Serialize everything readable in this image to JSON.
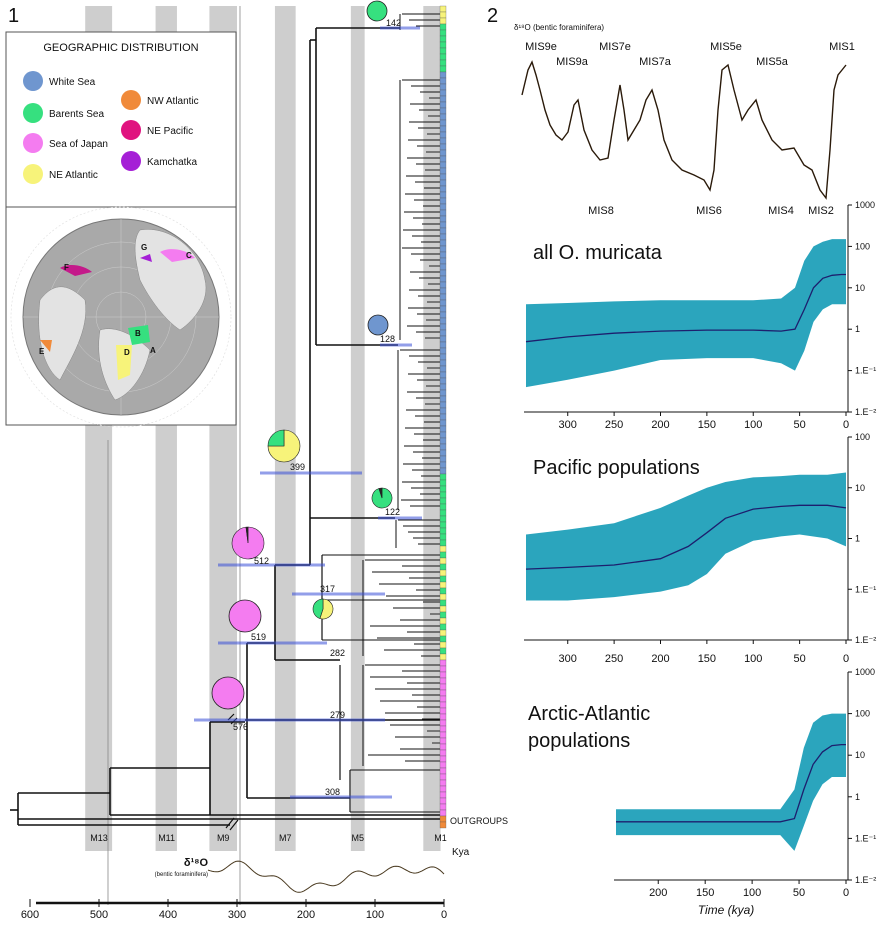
{
  "panel1": {
    "label": "1",
    "legend": {
      "title": "GEOGRAPHIC DISTRIBUTION",
      "items": [
        {
          "label": "White Sea",
          "color": "#6f96cf"
        },
        {
          "label": "Barents Sea",
          "color": "#36e07f"
        },
        {
          "label": "Sea of Japan",
          "color": "#f47cf0"
        },
        {
          "label": "NE Atlantic",
          "color": "#f7f37a"
        },
        {
          "label": "NW Atlantic",
          "color": "#f08a3a"
        },
        {
          "label": "NE Pacific",
          "color": "#e0137f"
        },
        {
          "label": "Kamchatka",
          "color": "#a51fd6"
        }
      ]
    },
    "map_letters": [
      "A",
      "B",
      "C",
      "D",
      "E",
      "F",
      "G"
    ],
    "tree": {
      "node_ages": [
        "142",
        "128",
        "399",
        "122",
        "512",
        "317",
        "519",
        "282",
        "576",
        "279",
        "308"
      ],
      "outgroups_label": "OUTGROUPS",
      "mis_labels": [
        "M13",
        "M11",
        "M9",
        "M7",
        "M5",
        "M1"
      ],
      "kya_label": "Kya",
      "axis_ticks": [
        "600",
        "500",
        "400",
        "300",
        "200",
        "100",
        "0"
      ],
      "d18o_title": "δ¹⁸O",
      "d18o_subtitle": "(bentic foraminifera)"
    }
  },
  "panel2": {
    "label": "2",
    "d18o_title": "δ¹⁸O (bentic foraminifera)",
    "mis_top": [
      "MIS9e",
      "MIS9a",
      "MIS7e",
      "MIS7a",
      "MIS5e",
      "MIS5a",
      "MIS1"
    ],
    "mis_bottom": [
      "MIS8",
      "MIS6",
      "MIS4",
      "MIS2"
    ],
    "colors": {
      "band": "#2ba5bd",
      "median": "#1d1f6e"
    }
  },
  "chart_data": [
    {
      "type": "area",
      "title": "all O. muricata",
      "xlabel": "",
      "ylabel": "",
      "x_ticks": [
        "300",
        "250",
        "200",
        "150",
        "100",
        "50",
        "0"
      ],
      "y_ticks": [
        "1000",
        "100",
        "10",
        "1",
        "1.E⁻¹",
        "1.E⁻²"
      ],
      "xlim": [
        345,
        0
      ],
      "ylim": [
        0.01,
        1000
      ],
      "y_scale": "log",
      "x": [
        345,
        300,
        250,
        200,
        150,
        100,
        70,
        55,
        45,
        35,
        25,
        15,
        5,
        0
      ],
      "series": [
        {
          "name": "median",
          "values": [
            0.5,
            0.65,
            0.8,
            0.9,
            0.95,
            0.95,
            0.9,
            1.0,
            3,
            10,
            17,
            20,
            21,
            21
          ]
        },
        {
          "name": "upper",
          "values": [
            4,
            4.3,
            4.7,
            5,
            5,
            5,
            5.5,
            10,
            45,
            100,
            130,
            150,
            150,
            150
          ]
        },
        {
          "name": "lower",
          "values": [
            0.04,
            0.06,
            0.1,
            0.18,
            0.2,
            0.2,
            0.15,
            0.1,
            0.3,
            1.5,
            3,
            4,
            4,
            4
          ]
        }
      ]
    },
    {
      "type": "area",
      "title": "Pacific populations",
      "xlabel": "",
      "ylabel": "",
      "x_ticks": [
        "300",
        "250",
        "200",
        "150",
        "100",
        "50",
        "0"
      ],
      "y_ticks": [
        "100",
        "10",
        "1",
        "1.E⁻¹",
        "1.E⁻²"
      ],
      "xlim": [
        345,
        0
      ],
      "ylim": [
        0.01,
        100
      ],
      "y_scale": "log",
      "x": [
        345,
        300,
        250,
        200,
        170,
        150,
        130,
        100,
        70,
        50,
        20,
        0
      ],
      "series": [
        {
          "name": "median",
          "values": [
            0.25,
            0.27,
            0.3,
            0.4,
            0.7,
            1.3,
            2.5,
            3.8,
            4.3,
            4.5,
            4.5,
            4
          ]
        },
        {
          "name": "upper",
          "values": [
            1.2,
            1.5,
            2,
            4,
            7,
            10,
            13,
            16,
            17,
            18,
            18,
            20
          ]
        },
        {
          "name": "lower",
          "values": [
            0.06,
            0.06,
            0.07,
            0.09,
            0.12,
            0.2,
            0.5,
            0.9,
            1.1,
            1.2,
            1.0,
            0.7
          ]
        }
      ]
    },
    {
      "type": "area",
      "title": "Arctic-Atlantic populations",
      "xlabel": "Time (kya)",
      "ylabel": "",
      "x_ticks": [
        "200",
        "150",
        "100",
        "50",
        "0"
      ],
      "y_ticks": [
        "1000",
        "100",
        "10",
        "1",
        "1.E⁻¹",
        "1.E⁻²"
      ],
      "xlim": [
        245,
        0
      ],
      "ylim": [
        0.01,
        1000
      ],
      "y_scale": "log",
      "x": [
        245,
        200,
        150,
        100,
        70,
        55,
        45,
        35,
        25,
        15,
        5,
        0
      ],
      "series": [
        {
          "name": "median",
          "values": [
            0.25,
            0.25,
            0.25,
            0.25,
            0.25,
            0.3,
            1.5,
            6,
            12,
            17,
            18,
            18
          ]
        },
        {
          "name": "upper",
          "values": [
            0.5,
            0.5,
            0.5,
            0.5,
            0.5,
            1.5,
            15,
            60,
            90,
            100,
            100,
            100
          ]
        },
        {
          "name": "lower",
          "values": [
            0.12,
            0.12,
            0.12,
            0.12,
            0.12,
            0.05,
            0.2,
            0.8,
            2,
            3,
            3,
            3
          ]
        }
      ]
    }
  ]
}
